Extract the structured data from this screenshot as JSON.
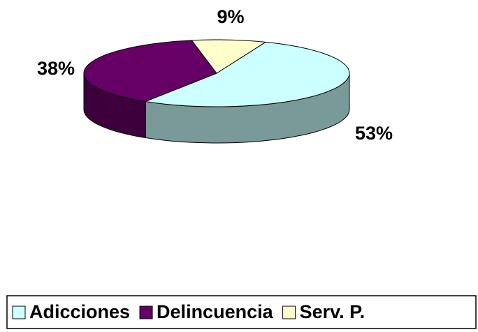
{
  "chart_data": {
    "type": "pie",
    "categories": [
      "Adicciones",
      "Delincuencia",
      "Serv. P."
    ],
    "values": [
      53,
      38,
      9
    ],
    "value_labels": [
      "53%",
      "38%",
      "9%"
    ],
    "colors": [
      "#ccffff",
      "#660066",
      "#ffffcc"
    ],
    "legend": "bottom"
  }
}
